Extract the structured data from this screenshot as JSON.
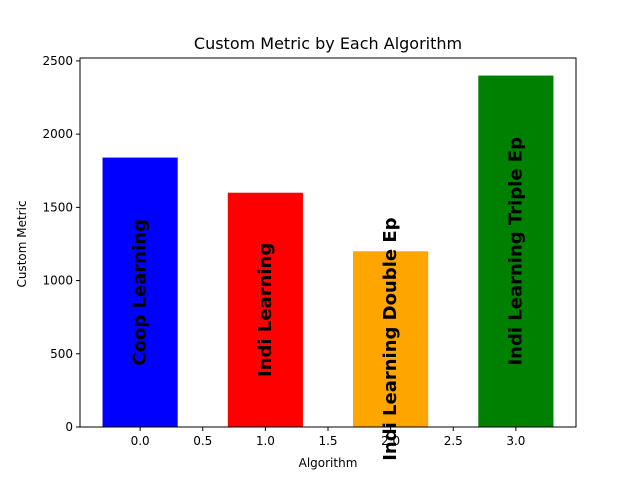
{
  "chart_data": {
    "type": "bar",
    "title": "Custom Metric by Each Algorithm",
    "xlabel": "Algorithm",
    "ylabel": "Custom Metric",
    "x": [
      0,
      1,
      2,
      3
    ],
    "values": [
      1840,
      1600,
      1200,
      2400
    ],
    "bar_labels": [
      "Coop Learning",
      "Indi Learning",
      "Indi Learning Double Ep",
      "Indi Learning Triple Ep"
    ],
    "colors": [
      "#0000ff",
      "#ff0000",
      "#ffa500",
      "#008000"
    ],
    "bar_width": 0.6,
    "xlim": [
      -0.48,
      3.48
    ],
    "ylim": [
      0,
      2520
    ],
    "xticks": [
      "0.0",
      "0.5",
      "1.0",
      "1.5",
      "2.0",
      "2.5",
      "3.0"
    ],
    "yticks": [
      "0",
      "500",
      "1000",
      "1500",
      "2000",
      "2500"
    ],
    "grid": false,
    "legend": "none"
  }
}
